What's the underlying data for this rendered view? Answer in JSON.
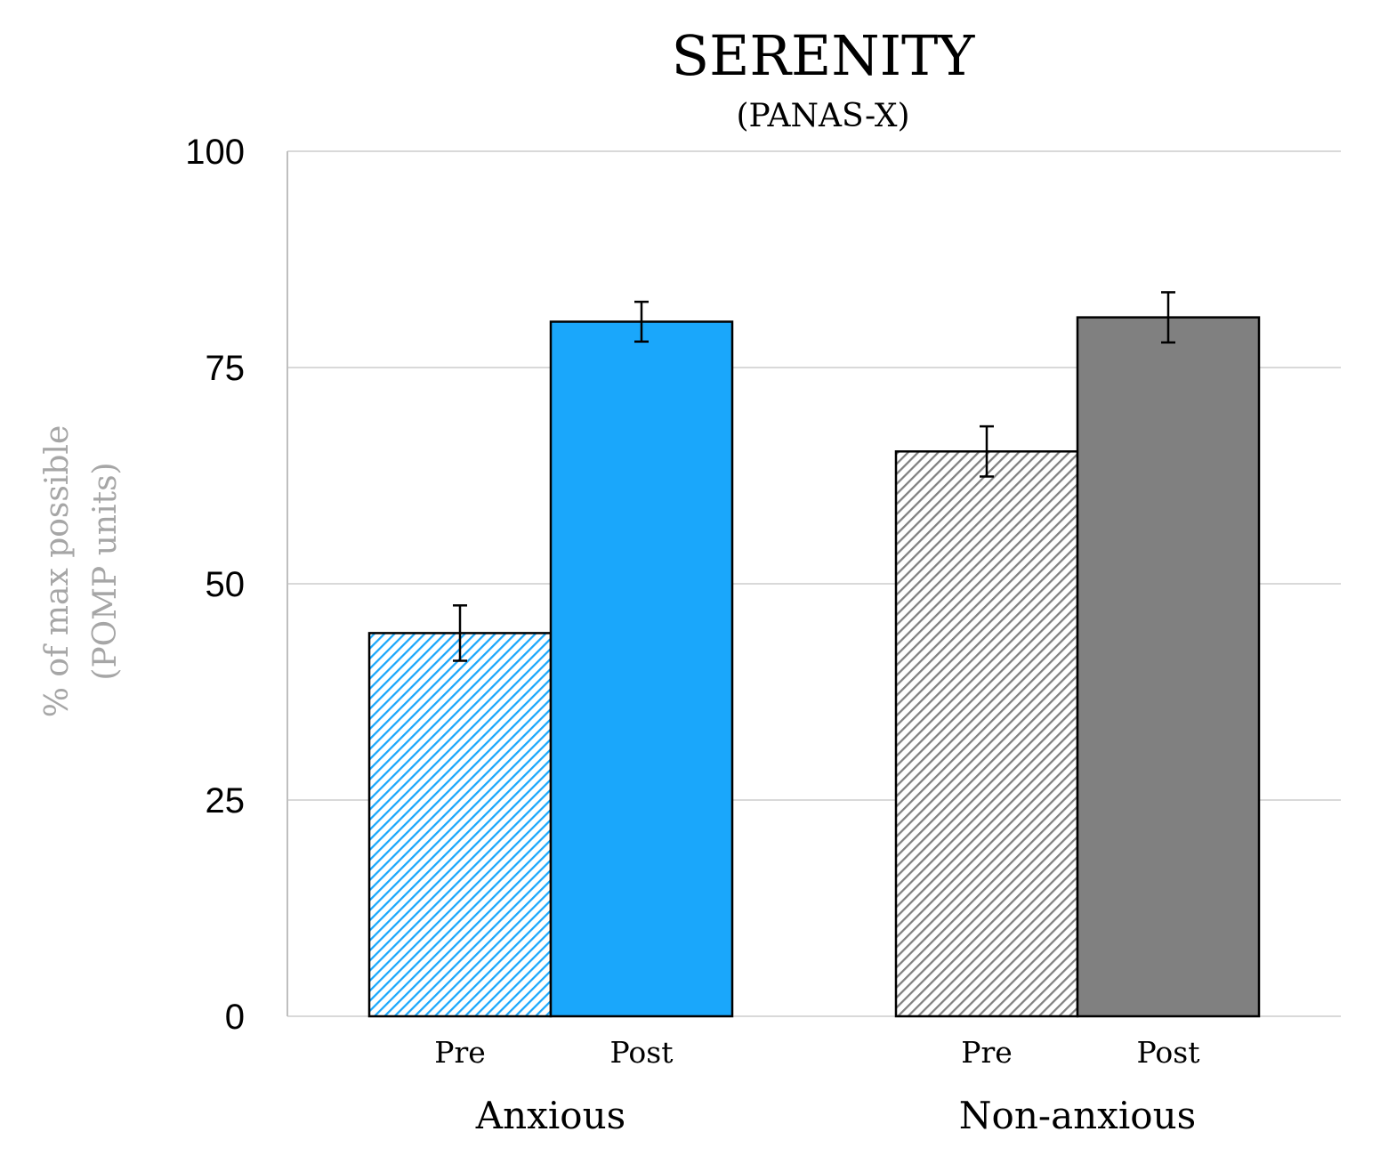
{
  "chart_data": {
    "type": "bar",
    "title": "SERENITY",
    "subtitle": "(PANAS-X)",
    "ylabel_line1": "% of max possible",
    "ylabel_line2": "(POMP units)",
    "ylim": [
      0,
      100
    ],
    "yticks": [
      0,
      25,
      50,
      75,
      100
    ],
    "ytick_labels": [
      "0",
      "25",
      "50",
      "75",
      "100"
    ],
    "grid": true,
    "groups": [
      {
        "name": "Anxious",
        "bars": [
          {
            "label": "Pre",
            "value": 44.3,
            "error": 3.2,
            "color": "#1aa7fb",
            "pattern": "hatched"
          },
          {
            "label": "Post",
            "value": 80.3,
            "error": 2.3,
            "color": "#1aa7fb",
            "pattern": "solid"
          }
        ]
      },
      {
        "name": "Non-anxious",
        "bars": [
          {
            "label": "Pre",
            "value": 65.3,
            "error": 2.9,
            "color": "#808080",
            "pattern": "hatched"
          },
          {
            "label": "Post",
            "value": 80.8,
            "error": 2.9,
            "color": "#808080",
            "pattern": "solid"
          }
        ]
      }
    ]
  }
}
